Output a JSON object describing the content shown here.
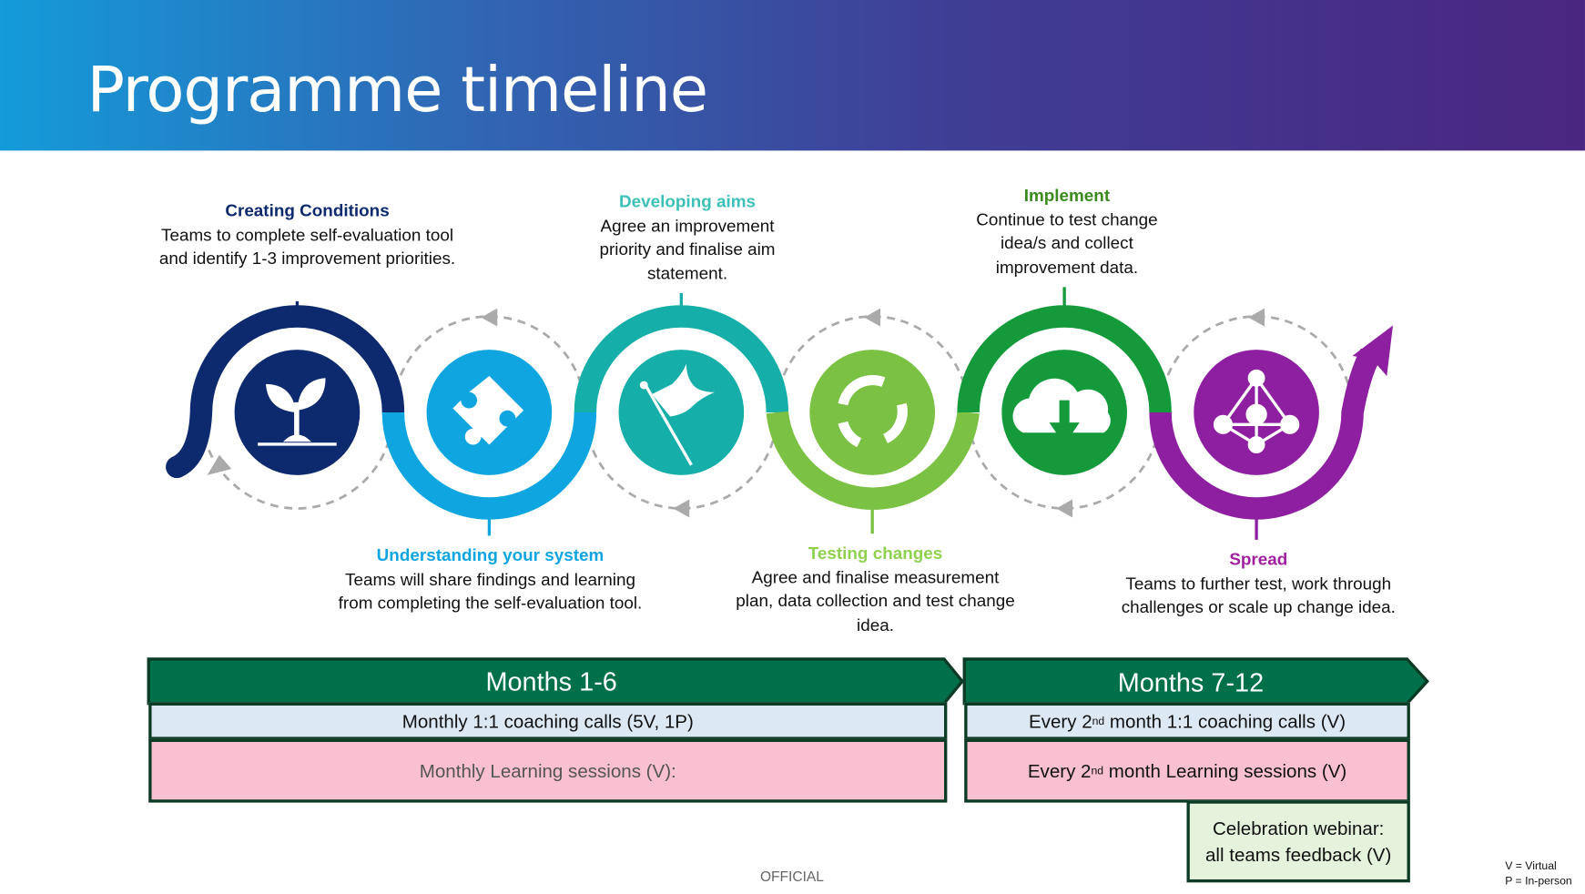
{
  "title": "Programme timeline",
  "stages": [
    {
      "heading": "Creating Conditions",
      "text": "Teams to complete self-evaluation tool and identify 1-3 improvement priorities.",
      "color": "#0d2a6e",
      "icon": "seedling-icon"
    },
    {
      "heading": "Understanding your system",
      "text": "Teams will share findings and learning from completing the self-evaluation tool.",
      "color": "#0ea5e0",
      "icon": "puzzle-piece-icon"
    },
    {
      "heading": "Developing aims",
      "text": "Agree an improvement priority and finalise aim statement.",
      "color": "#22b5b0",
      "icon": "flag-icon"
    },
    {
      "heading": "Testing changes",
      "text": "Agree and finalise measurement plan, data collection and test change idea.",
      "color": "#7bc143",
      "icon": "cycle-arrows-icon"
    },
    {
      "heading": "Implement",
      "text": "Continue to test change idea/s and collect improvement data.",
      "color": "#1b8a2e",
      "icon": "cloud-download-icon"
    },
    {
      "heading": "Spread",
      "text": "Teams to further test, work through challenges or scale up change idea.",
      "color": "#8e1fa0",
      "icon": "network-icon"
    }
  ],
  "phases": [
    {
      "label": "Months 1-6",
      "coaching": "Monthly 1:1 coaching calls (5V, 1P)",
      "learning": "Monthly Learning sessions (V):"
    },
    {
      "label": "Months 7-12",
      "coaching_pre": "Every 2",
      "coaching_sup": "nd",
      "coaching_post": " month 1:1 coaching calls (V)",
      "learning_pre": "Every 2",
      "learning_sup": "nd",
      "learning_post": " month Learning sessions (V)"
    }
  ],
  "celebration": {
    "line1": "Celebration webinar:",
    "line2": "all teams feedback (V)"
  },
  "footer": "OFFICIAL",
  "legend": [
    "V = Virtual",
    "P = In-person"
  ],
  "colors": {
    "phase_header": "#00704a",
    "coaching_bg": "#dde8f5",
    "learning_bg": "#f9c0d1",
    "celebration_bg": "#e5f2dc"
  }
}
